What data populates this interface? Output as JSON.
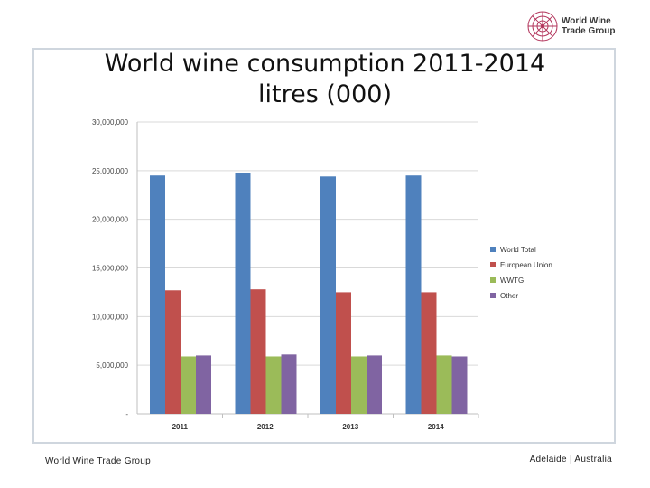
{
  "logo": {
    "line1": "World Wine",
    "line2": "Trade Group"
  },
  "title_line1": "World wine consumption 2011-2014",
  "title_line2": "litres (000)",
  "footer": {
    "left": "World Wine Trade Group",
    "right": "Adelaide | Australia"
  },
  "chart_data": {
    "type": "bar",
    "title": "World wine consumption 2011-2014 litres (000)",
    "xlabel": "",
    "ylabel": "",
    "categories": [
      "2011",
      "2012",
      "2013",
      "2014"
    ],
    "series": [
      {
        "name": "World Total",
        "color": "#4f81bd",
        "values": [
          24500000,
          24800000,
          24400000,
          24500000
        ]
      },
      {
        "name": "European Union",
        "color": "#c0504d",
        "values": [
          12700000,
          12800000,
          12500000,
          12500000
        ]
      },
      {
        "name": "WWTG",
        "color": "#9bbb59",
        "values": [
          5900000,
          5900000,
          5900000,
          6000000
        ]
      },
      {
        "name": "Other",
        "color": "#8064a2",
        "values": [
          6000000,
          6100000,
          6000000,
          5900000
        ]
      }
    ],
    "ylim": [
      0,
      30000000
    ],
    "yticks": [
      {
        "value": 0,
        "label": "-"
      },
      {
        "value": 5000000,
        "label": "5,000,000"
      },
      {
        "value": 10000000,
        "label": "10,000,000"
      },
      {
        "value": 15000000,
        "label": "15,000,000"
      },
      {
        "value": 20000000,
        "label": "20,000,000"
      },
      {
        "value": 25000000,
        "label": "25,000,000"
      },
      {
        "value": 30000000,
        "label": "30,000,000"
      }
    ],
    "grid": true,
    "legend_position": "right"
  }
}
